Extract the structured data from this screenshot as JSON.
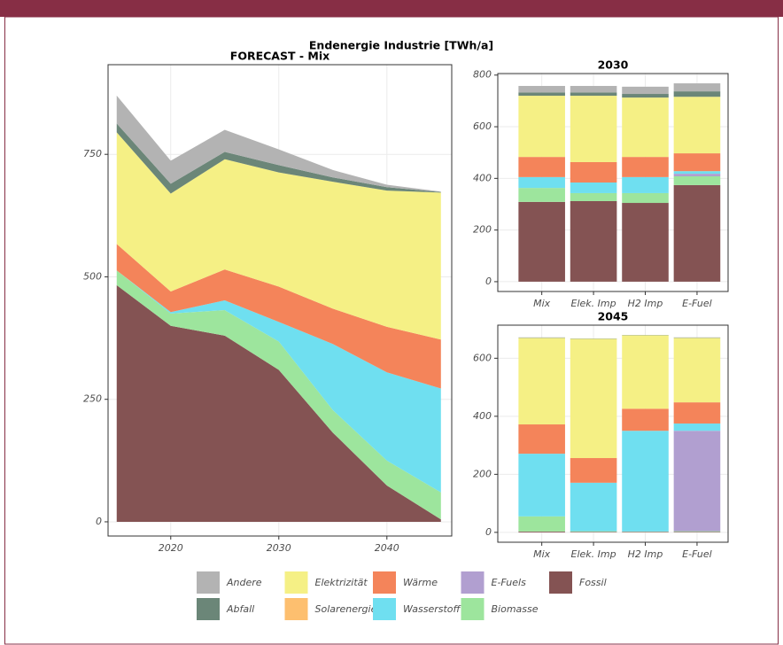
{
  "title": "Endenergie Industrie [TWh/a]",
  "chart_data": [
    {
      "type": "area",
      "title": "FORECAST - Mix",
      "x": [
        2015,
        2020,
        2025,
        2030,
        2035,
        2040,
        2045
      ],
      "xlim": [
        2014.2,
        2046
      ],
      "xticks": [
        2020,
        2030,
        2040
      ],
      "ylim": [
        -29,
        933
      ],
      "yticks": [
        0,
        250,
        500,
        750
      ],
      "grid": true,
      "legend": "bottom",
      "series": [
        {
          "name": "Fossil",
          "color": "#845353",
          "values": [
            483,
            400,
            380,
            310,
            182,
            74,
            5
          ]
        },
        {
          "name": "Biomasse",
          "color": "#9de59d",
          "values": [
            30,
            25,
            52,
            58,
            46,
            51,
            55
          ]
        },
        {
          "name": "E-Fuels",
          "color": "#b19fd0",
          "values": [
            0,
            0,
            0,
            0,
            0,
            0,
            0
          ]
        },
        {
          "name": "Wasserstoff",
          "color": "#6fdff0",
          "values": [
            0,
            3,
            20,
            40,
            135,
            180,
            212
          ]
        },
        {
          "name": "Wärme",
          "color": "#f4845a",
          "values": [
            54,
            42,
            63,
            72,
            72,
            93,
            100
          ]
        },
        {
          "name": "Solarenergie",
          "color": "#fdbf6f",
          "values": [
            0,
            0,
            0,
            0,
            0,
            0,
            0
          ]
        },
        {
          "name": "Elektrizität",
          "color": "#f5f085",
          "values": [
            228,
            200,
            225,
            233,
            259,
            278,
            300
          ]
        },
        {
          "name": "Abfall",
          "color": "#6b8678",
          "values": [
            18,
            20,
            15,
            15,
            9,
            7,
            1
          ]
        },
        {
          "name": "Andere",
          "color": "#b3b3b3",
          "values": [
            57,
            47,
            45,
            32,
            15,
            5,
            1
          ]
        }
      ]
    },
    {
      "type": "stacked_bar",
      "title": "2030",
      "categories": [
        "Mix",
        "Elek. Imp",
        "H2 Imp",
        "E-Fuel"
      ],
      "ylim": [
        -38,
        806
      ],
      "yticks": [
        0,
        200,
        400,
        600,
        800
      ],
      "grid": true,
      "series": [
        {
          "values": [
            309,
            312,
            305,
            374
          ]
        },
        {
          "values": [
            54,
            31,
            38,
            34
          ]
        },
        {
          "values": [
            0,
            0,
            0,
            10
          ]
        },
        {
          "values": [
            42,
            41,
            62,
            10
          ]
        },
        {
          "values": [
            78,
            79,
            78,
            69
          ]
        },
        {
          "values": [
            0,
            0,
            0,
            0
          ]
        },
        {
          "values": [
            237,
            257,
            230,
            219
          ]
        },
        {
          "values": [
            13,
            13,
            14,
            21
          ]
        },
        {
          "values": [
            25,
            25,
            28,
            31
          ]
        }
      ]
    },
    {
      "type": "stacked_bar",
      "title": "2045",
      "categories": [
        "Mix",
        "Elek. Imp",
        "H2 Imp",
        "E-Fuel"
      ],
      "ylim": [
        -34,
        714
      ],
      "yticks": [
        0,
        200,
        400,
        600
      ],
      "grid": true,
      "series": [
        {
          "values": [
            3,
            2,
            2,
            2
          ]
        },
        {
          "values": [
            52,
            2,
            1,
            2
          ]
        },
        {
          "values": [
            0,
            0,
            0,
            346
          ]
        },
        {
          "values": [
            216,
            167,
            347,
            25
          ]
        },
        {
          "values": [
            101,
            85,
            76,
            73
          ]
        },
        {
          "values": [
            0,
            0,
            0,
            0
          ]
        },
        {
          "values": [
            298,
            411,
            253,
            222
          ]
        },
        {
          "values": [
            1,
            1,
            1,
            1
          ]
        },
        {
          "values": [
            1,
            0,
            0,
            1
          ]
        }
      ]
    }
  ]
}
